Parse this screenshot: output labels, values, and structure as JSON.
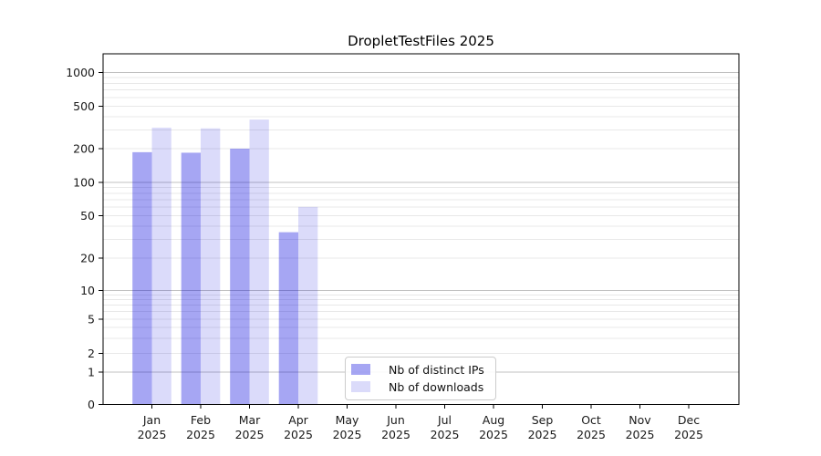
{
  "chart_data": {
    "type": "bar",
    "title": "DropletTestFiles 2025",
    "categories": [
      "Jan",
      "Feb",
      "Mar",
      "Apr",
      "May",
      "Jun",
      "Jul",
      "Aug",
      "Sep",
      "Oct",
      "Nov",
      "Dec"
    ],
    "category_year": "2025",
    "series": [
      {
        "name": "Nb of distinct IPs",
        "key": "distinct-ips",
        "fill": "rgba(0,0,221,0.35)",
        "swatch_color": "#a8a8f0",
        "values": [
          186,
          184,
          200,
          35,
          null,
          null,
          null,
          null,
          null,
          null,
          null,
          null
        ]
      },
      {
        "name": "Nb of downloads",
        "key": "downloads",
        "fill": "rgba(0,0,221,0.14)",
        "swatch_color": "#dcdcf8",
        "values": [
          315,
          310,
          375,
          60,
          null,
          null,
          null,
          null,
          null,
          null,
          null,
          null
        ]
      }
    ],
    "yticks": [
      0,
      1,
      2,
      5,
      10,
      20,
      50,
      100,
      200,
      500,
      1000
    ],
    "yscale": "symlog",
    "ylim": [
      0,
      1500
    ],
    "xlabel": "",
    "ylabel": "",
    "grid": "both",
    "grid_major_color": "#c0c0c0",
    "grid_minor_color": "#e8e8e8",
    "axis_color": "#000000",
    "tick_label_color": "#191919",
    "legend_position": "lower-center"
  }
}
